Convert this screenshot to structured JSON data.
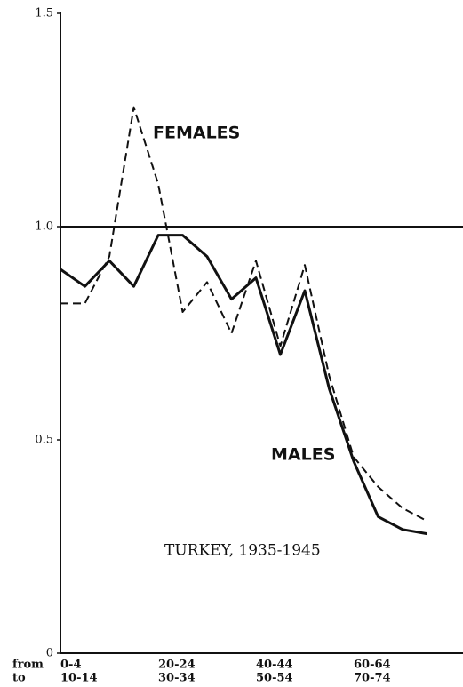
{
  "chart_data": {
    "type": "line",
    "title": "TURKEY, 1935-1945",
    "x_row_labels": [
      "from",
      "to"
    ],
    "categories": [
      "0-4",
      null,
      null,
      null,
      "20-24",
      null,
      null,
      null,
      "40-44",
      null,
      null,
      null,
      "60-64",
      null,
      null,
      null
    ],
    "categories_to": [
      "10-14",
      null,
      null,
      null,
      "30-34",
      null,
      null,
      null,
      "50-54",
      null,
      null,
      null,
      "70-74",
      null,
      null,
      null
    ],
    "series": [
      {
        "name": "MALES",
        "color": "#111111",
        "style": "solid",
        "values": [
          0.9,
          0.86,
          0.92,
          0.86,
          0.98,
          0.98,
          0.93,
          0.83,
          0.88,
          0.7,
          0.85,
          0.62,
          0.45,
          0.32,
          0.29,
          0.28
        ]
      },
      {
        "name": "FEMALES",
        "color": "#111111",
        "style": "dashed",
        "values": [
          0.82,
          0.82,
          0.93,
          1.28,
          1.1,
          0.8,
          0.87,
          0.75,
          0.92,
          0.72,
          0.91,
          0.65,
          0.46,
          0.39,
          0.34,
          0.31
        ]
      }
    ],
    "reference_line": 1,
    "ylim": [
      0,
      1.5
    ],
    "yticks": [
      0,
      0.5,
      {
        "value": 1,
        "label": "1.0"
      },
      1.5
    ]
  }
}
